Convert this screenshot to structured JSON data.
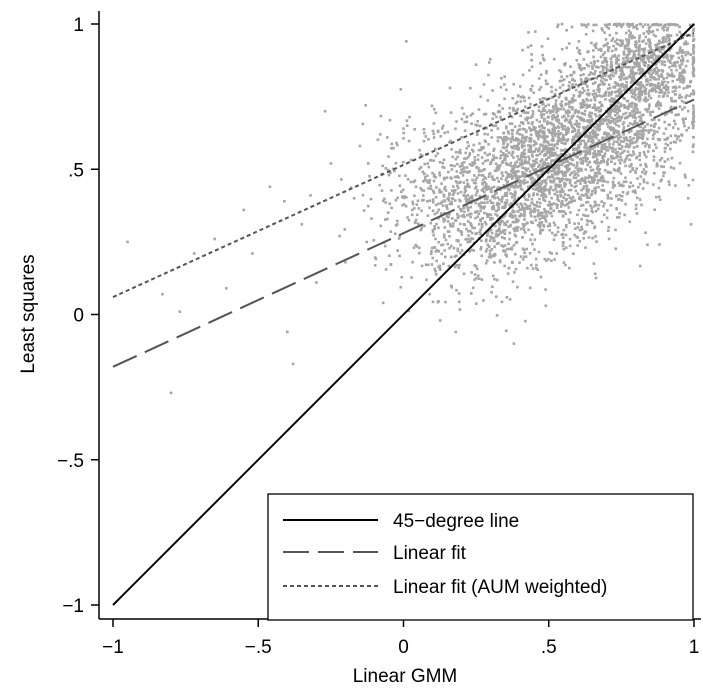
{
  "chart_data": {
    "type": "scatter",
    "xlabel": "Linear GMM",
    "ylabel": "Least squares",
    "xlim": [
      -1,
      1
    ],
    "ylim": [
      -1,
      1
    ],
    "x_ticks": [
      {
        "value": -1,
        "label": "−1"
      },
      {
        "value": -0.5,
        "label": "−.5"
      },
      {
        "value": 0,
        "label": "0"
      },
      {
        "value": 0.5,
        "label": ".5"
      },
      {
        "value": 1,
        "label": "1"
      }
    ],
    "y_ticks": [
      {
        "value": -1,
        "label": "−1"
      },
      {
        "value": -0.5,
        "label": "−.5"
      },
      {
        "value": 0,
        "label": "0"
      },
      {
        "value": 0.5,
        "label": ".5"
      },
      {
        "value": 1,
        "label": "1"
      }
    ],
    "grid": false,
    "legend_position": "bottom-right",
    "series": [
      {
        "name": "45−degree line",
        "kind": "line",
        "style": "solid",
        "color": "#000000",
        "x": [
          -1,
          1
        ],
        "y": [
          -1,
          1
        ]
      },
      {
        "name": "Linear fit",
        "kind": "line",
        "style": "long-dash",
        "color": "#555555",
        "x": [
          -1,
          1
        ],
        "y": [
          -0.18,
          0.74
        ]
      },
      {
        "name": "Linear fit (AUM weighted)",
        "kind": "line",
        "style": "short-dash",
        "color": "#555555",
        "x": [
          -1,
          1
        ],
        "y": [
          0.06,
          0.97
        ]
      }
    ],
    "scatter": {
      "color": "#a6a6a6",
      "points": [
        [
          -0.95,
          0.25
        ],
        [
          -0.83,
          0.07
        ],
        [
          -0.8,
          -0.27
        ],
        [
          -0.77,
          0.01
        ],
        [
          -0.72,
          0.21
        ],
        [
          -0.65,
          0.26
        ],
        [
          -0.61,
          0.09
        ],
        [
          -0.55,
          0.36
        ],
        [
          -0.52,
          0.21
        ],
        [
          -0.46,
          0.44
        ],
        [
          -0.41,
          0.39
        ],
        [
          -0.4,
          -0.06
        ],
        [
          -0.38,
          -0.17
        ],
        [
          -0.35,
          0.31
        ],
        [
          -0.32,
          0.41
        ],
        [
          -0.3,
          0.11
        ],
        [
          -0.27,
          0.7
        ],
        [
          -0.25,
          0.52
        ],
        [
          -0.22,
          0.27
        ],
        [
          -0.2,
          0.18
        ],
        [
          -0.17,
          0.4
        ],
        [
          -0.15,
          0.58
        ],
        [
          -0.13,
          0.72
        ],
        [
          -0.11,
          0.33
        ],
        [
          -0.08,
          0.62
        ],
        [
          -0.07,
          0.04
        ],
        [
          -0.05,
          0.48
        ],
        [
          -0.02,
          0.22
        ],
        [
          0.0,
          0.64
        ],
        [
          0.01,
          0.94
        ],
        [
          0.03,
          0.36
        ],
        [
          0.06,
          0.55
        ],
        [
          0.09,
          0.07
        ],
        [
          0.11,
          0.26
        ],
        [
          0.14,
          0.47
        ],
        [
          0.16,
          0.78
        ],
        [
          0.18,
          -0.06
        ],
        [
          0.2,
          0.61
        ],
        [
          0.23,
          0.39
        ],
        [
          0.25,
          0.86
        ],
        [
          0.27,
          0.12
        ],
        [
          0.3,
          0.52
        ],
        [
          0.32,
          0.68
        ],
        [
          0.35,
          0.29
        ],
        [
          0.38,
          -0.1
        ],
        [
          0.41,
          0.91
        ],
        [
          0.44,
          0.17
        ],
        [
          0.47,
          0.74
        ],
        [
          0.49,
          0.03
        ],
        [
          0.53,
          0.99
        ],
        [
          0.56,
          0.23
        ],
        [
          0.58,
          0.99
        ],
        [
          0.63,
          0.99
        ],
        [
          0.66,
          0.14
        ],
        [
          0.7,
          0.99
        ],
        [
          0.75,
          0.99
        ],
        [
          0.8,
          0.99
        ],
        [
          0.84,
          0.24
        ],
        [
          0.9,
          0.99
        ],
        [
          0.95,
          0.99
        ],
        [
          0.98,
          0.4
        ],
        [
          0.99,
          0.31
        ],
        [
          0.99,
          0.99
        ]
      ],
      "clusters": [
        {
          "center": [
            0.5,
            0.5
          ],
          "spread": [
            0.14,
            0.13
          ],
          "n": 1400
        },
        {
          "center": [
            0.72,
            0.7
          ],
          "spread": [
            0.14,
            0.14
          ],
          "n": 1200
        },
        {
          "center": [
            0.28,
            0.35
          ],
          "spread": [
            0.12,
            0.13
          ],
          "n": 600
        },
        {
          "center": [
            0.85,
            0.88
          ],
          "spread": [
            0.09,
            0.08
          ],
          "n": 500
        },
        {
          "center": [
            0.1,
            0.42
          ],
          "spread": [
            0.13,
            0.15
          ],
          "n": 250
        }
      ]
    }
  }
}
